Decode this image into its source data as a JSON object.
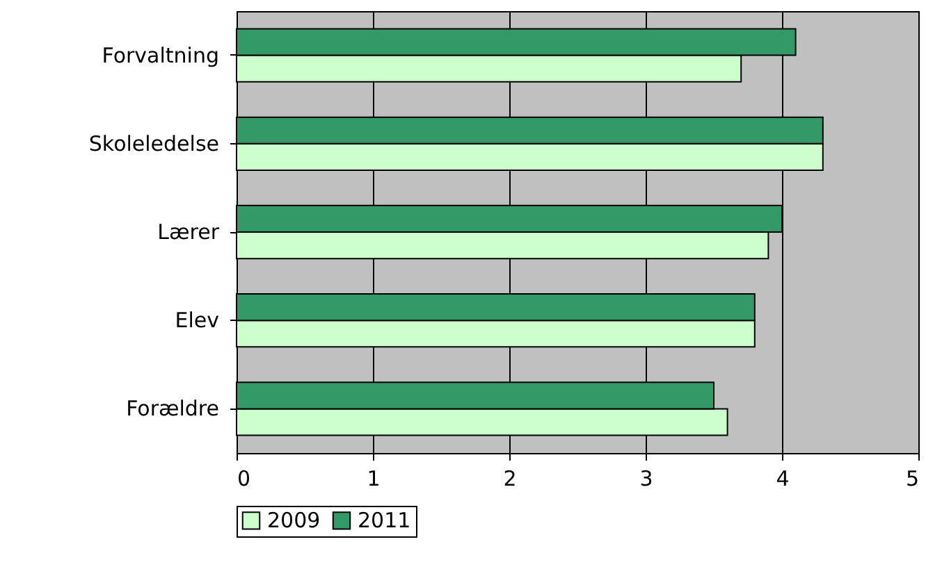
{
  "chart_data": {
    "type": "bar",
    "orientation": "horizontal",
    "categories": [
      "Forvaltning",
      "Skoleledelse",
      "Lærer",
      "Elev",
      "Forældre"
    ],
    "series": [
      {
        "name": "2009",
        "color": "#ccffcc",
        "values": [
          3.7,
          4.3,
          3.9,
          3.8,
          3.6
        ]
      },
      {
        "name": "2011",
        "color": "#339966",
        "values": [
          4.1,
          4.3,
          4.0,
          3.8,
          3.5
        ]
      }
    ],
    "xlim": [
      0,
      5
    ],
    "xticks": [
      0,
      1,
      2,
      3,
      4,
      5
    ],
    "grid": "x",
    "legend": "bottom"
  }
}
